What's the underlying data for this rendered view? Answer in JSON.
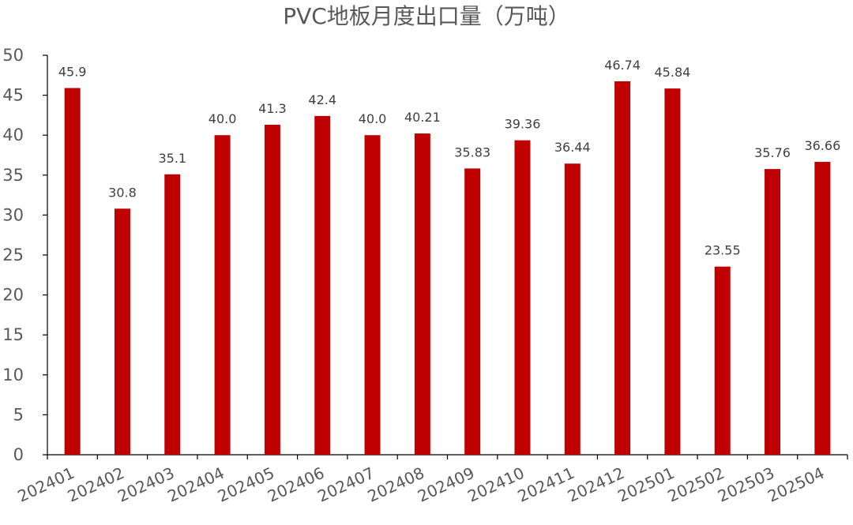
{
  "chart_data": {
    "type": "bar",
    "title": "PVC地板月度出口量（万吨）",
    "xlabel": "",
    "ylabel": "",
    "categories": [
      "202401",
      "202402",
      "202403",
      "202404",
      "202405",
      "202406",
      "202407",
      "202408",
      "202409",
      "202410",
      "202411",
      "202412",
      "202501",
      "202502",
      "202503",
      "202504"
    ],
    "values": [
      45.9,
      30.8,
      35.1,
      40.0,
      41.3,
      42.4,
      40.0,
      40.21,
      35.83,
      39.36,
      36.44,
      46.74,
      45.84,
      23.55,
      35.76,
      36.66
    ],
    "data_labels": [
      "45.9",
      "30.8",
      "35.1",
      "40.0",
      "41.3",
      "42.4",
      "40.0",
      "40.21",
      "35.83",
      "39.36",
      "36.44",
      "46.74",
      "45.84",
      "23.55",
      "35.76",
      "36.66"
    ],
    "ylim": [
      0,
      50
    ],
    "yticks": [
      "0",
      "5",
      "10",
      "15",
      "20",
      "25",
      "30",
      "35",
      "40",
      "45",
      "50"
    ],
    "grid": false,
    "legend": "none",
    "colors": {
      "bar": "#C00000",
      "axis": "#000000",
      "text": "#595959"
    }
  }
}
